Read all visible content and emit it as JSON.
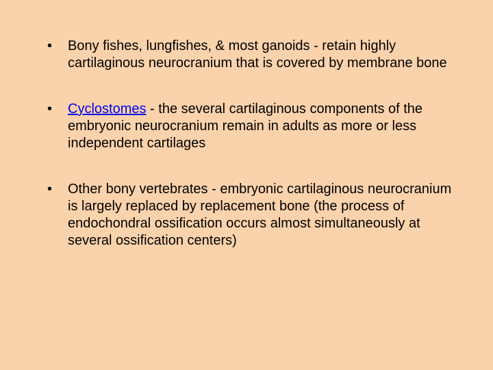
{
  "slide": {
    "background_color": "#fad2ac",
    "text_color": "#000000",
    "link_color": "#0000ee",
    "font_family": "Arial",
    "font_size_pt": 20,
    "line_height": 1.25,
    "bullets": [
      {
        "prefix": "",
        "term": "",
        "term_link": false,
        "text": "Bony fishes, lungfishes, & most ganoids - retain highly cartilaginous neurocranium that is covered by membrane bone"
      },
      {
        "prefix": "",
        "term": "Cyclostomes",
        "term_link": true,
        "text": " - the several cartilaginous components of the embryonic neurocranium remain in adults as more or less independent cartilages"
      },
      {
        "prefix": "",
        "term": "",
        "term_link": false,
        "text": "Other bony vertebrates - embryonic cartilaginous neurocranium is largely replaced by replacement bone (the process of endochondral ossification occurs almost simultaneously at several ossification centers)"
      }
    ]
  }
}
